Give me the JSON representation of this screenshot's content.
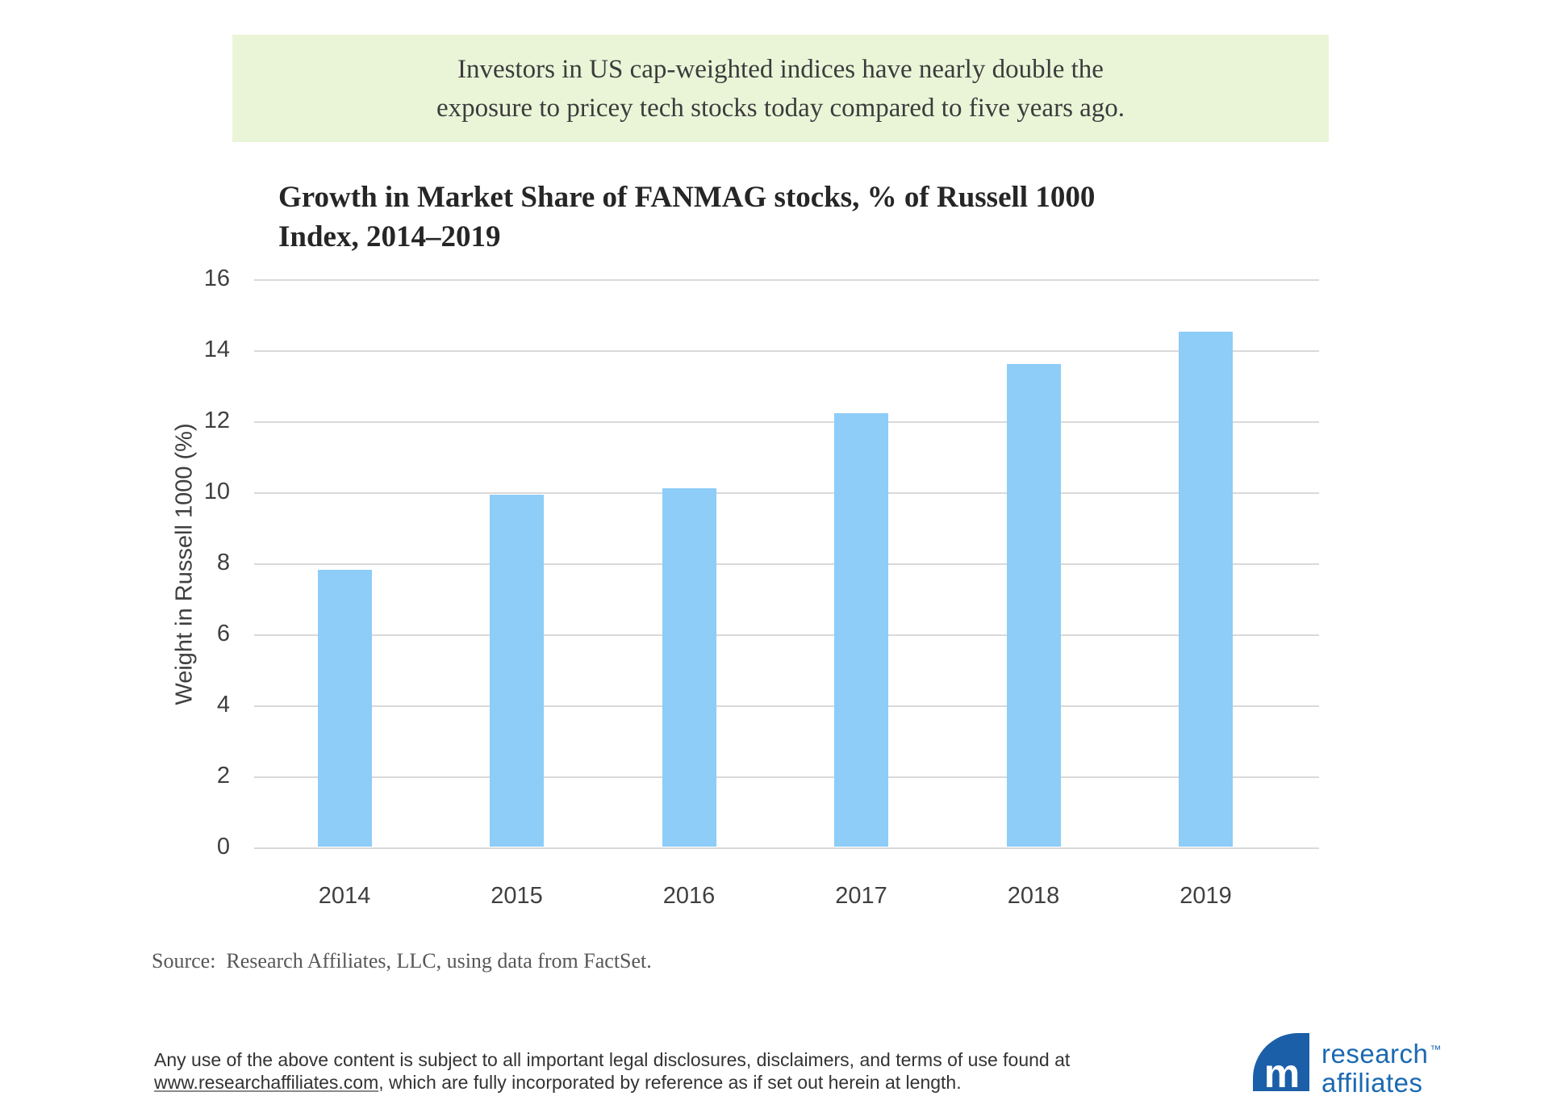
{
  "banner": {
    "line1": "Investors in US cap-weighted indices have nearly double the",
    "line2": "exposure to pricey tech stocks today compared to five years ago.",
    "bg_color": "#EAF5D8"
  },
  "chart_data": {
    "type": "bar",
    "title": "Growth in Market Share of FANMAG stocks, % of Russell 1000 Index, 2014–2019",
    "title_lines": [
      "Growth in Market Share of FANMAG stocks, % of Russell 1000",
      "Index, 2014–2019"
    ],
    "categories": [
      "2014",
      "2015",
      "2016",
      "2017",
      "2018",
      "2019"
    ],
    "values": [
      7.8,
      9.9,
      10.1,
      12.2,
      13.6,
      14.5
    ],
    "xlabel": "",
    "ylabel": "Weight in Russell 1000 (%)",
    "ylim": [
      0,
      16
    ],
    "yticks": [
      0,
      2,
      4,
      6,
      8,
      10,
      12,
      14,
      16
    ],
    "grid": true,
    "legend": "none",
    "bar_color": "#8DCDF8",
    "grid_color": "#D9D9D9",
    "tick_color": "#3F3F3F"
  },
  "source": {
    "text": "Source:  Research Affiliates, LLC, using data from FactSet."
  },
  "footer": {
    "line1": "Any use of the above content is subject to all important legal disclosures, disclaimers, and terms of use found at",
    "link_text": "www.researchaffiliates.com",
    "line2_rest": ", which are fully incorporated by reference as if set out herein at length."
  },
  "logo": {
    "monogram": "m",
    "line1": "research",
    "tm": "™",
    "line2": "affiliates",
    "color": "#1B5FA8"
  }
}
